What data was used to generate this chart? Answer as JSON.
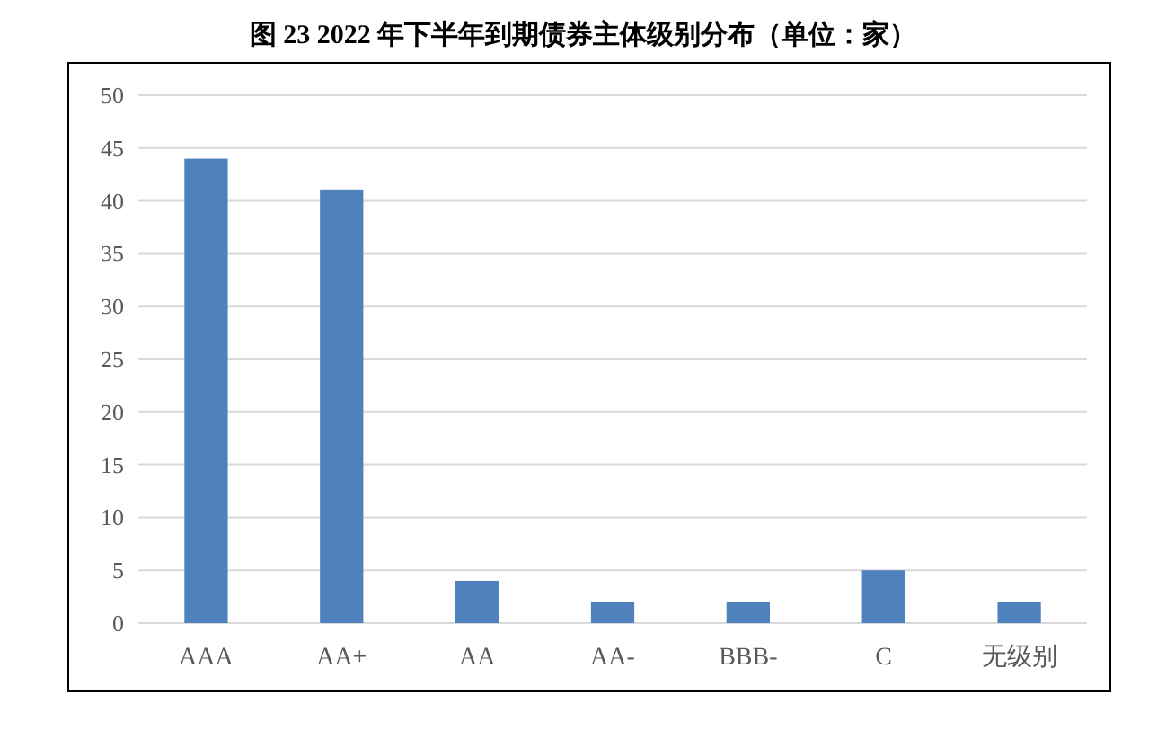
{
  "chart_data": {
    "type": "bar",
    "title": "图 23 2022 年下半年到期债券主体级别分布（单位：家）",
    "categories": [
      "AAA",
      "AA+",
      "AA",
      "AA-",
      "BBB-",
      "C",
      "无级别"
    ],
    "values": [
      44,
      41,
      4,
      2,
      2,
      5,
      2
    ],
    "color": "#4f81bd",
    "ylim": [
      0,
      50
    ],
    "yticks": [
      0,
      5,
      10,
      15,
      20,
      25,
      30,
      35,
      40,
      45,
      50
    ],
    "grid": "y"
  }
}
